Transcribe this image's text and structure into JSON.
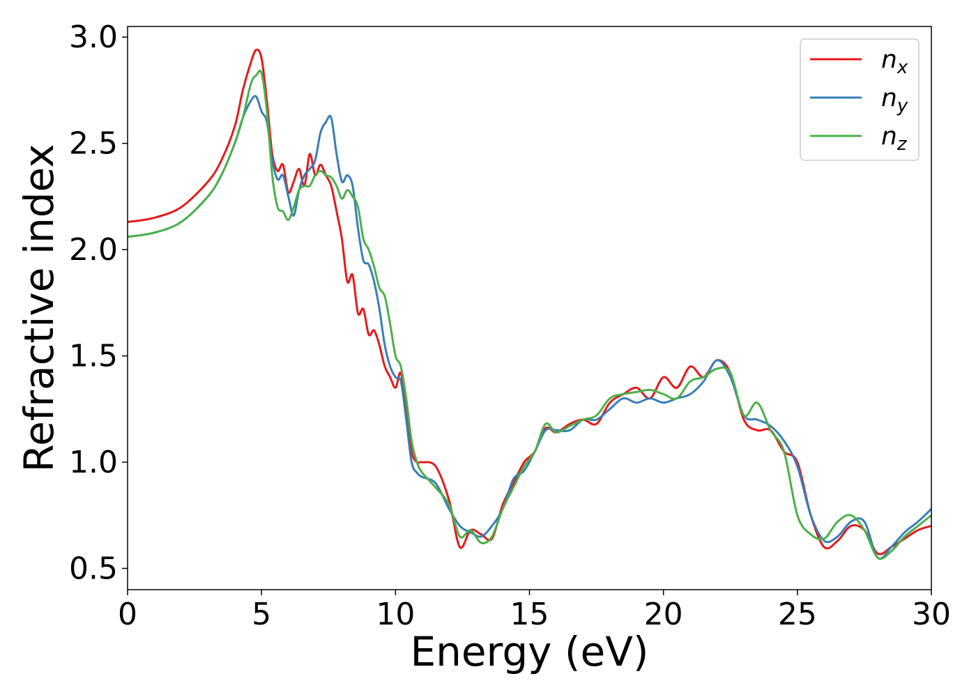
{
  "chart_data": {
    "type": "line",
    "xlabel": "Energy (eV)",
    "ylabel": "Refractive index",
    "xlim": [
      0,
      30
    ],
    "ylim": [
      0.4,
      3.05
    ],
    "xticks": [
      "0",
      "5",
      "10",
      "15",
      "20",
      "25",
      "30"
    ],
    "yticks": [
      "0.5",
      "1.0",
      "1.5",
      "2.0",
      "2.5",
      "3.0"
    ],
    "grid": false,
    "legend_position": "top-right",
    "series": [
      {
        "name": "n",
        "subscript": "x",
        "color": "#e41a1c",
        "x": [
          0,
          1,
          2,
          3,
          3.5,
          4,
          4.3,
          4.6,
          4.8,
          5.0,
          5.2,
          5.4,
          5.6,
          5.8,
          6.0,
          6.2,
          6.4,
          6.6,
          6.8,
          7.0,
          7.2,
          7.4,
          7.6,
          7.8,
          8.0,
          8.2,
          8.4,
          8.6,
          8.8,
          9.0,
          9.2,
          9.4,
          9.6,
          9.8,
          10.0,
          10.2,
          10.4,
          10.6,
          10.8,
          11.0,
          11.5,
          12.0,
          12.4,
          12.8,
          13.2,
          13.6,
          14.0,
          14.4,
          14.8,
          15.2,
          15.6,
          16.0,
          16.5,
          17.0,
          17.5,
          18.0,
          18.5,
          19.0,
          19.5,
          20.0,
          20.5,
          21.0,
          21.5,
          22.0,
          22.5,
          23.0,
          23.5,
          24.0,
          24.5,
          25.0,
          25.5,
          26.0,
          26.5,
          27.0,
          27.5,
          28.0,
          28.5,
          29.0,
          29.5,
          30.0
        ],
        "y": [
          2.13,
          2.15,
          2.2,
          2.32,
          2.42,
          2.58,
          2.75,
          2.88,
          2.94,
          2.9,
          2.7,
          2.45,
          2.37,
          2.4,
          2.27,
          2.32,
          2.38,
          2.3,
          2.45,
          2.35,
          2.4,
          2.35,
          2.3,
          2.18,
          2.05,
          1.85,
          1.88,
          1.7,
          1.72,
          1.6,
          1.62,
          1.55,
          1.45,
          1.4,
          1.35,
          1.42,
          1.25,
          1.05,
          1.0,
          1.0,
          0.98,
          0.82,
          0.6,
          0.68,
          0.66,
          0.64,
          0.8,
          0.9,
          1.0,
          1.05,
          1.16,
          1.14,
          1.18,
          1.2,
          1.18,
          1.28,
          1.32,
          1.35,
          1.3,
          1.4,
          1.35,
          1.45,
          1.4,
          1.48,
          1.42,
          1.2,
          1.15,
          1.15,
          1.05,
          1.0,
          0.75,
          0.6,
          0.63,
          0.7,
          0.68,
          0.57,
          0.6,
          0.64,
          0.68,
          0.7
        ]
      },
      {
        "name": "n",
        "subscript": "y",
        "color": "#377eb8",
        "x": [
          0,
          1,
          2,
          3,
          3.5,
          4,
          4.3,
          4.6,
          4.8,
          5.0,
          5.2,
          5.4,
          5.6,
          5.8,
          6.0,
          6.2,
          6.4,
          6.6,
          6.8,
          7.0,
          7.2,
          7.4,
          7.6,
          7.8,
          8.0,
          8.2,
          8.4,
          8.6,
          8.8,
          9.0,
          9.2,
          9.4,
          9.6,
          9.8,
          10.0,
          10.2,
          10.4,
          10.6,
          10.8,
          11.0,
          11.5,
          12.0,
          12.4,
          12.8,
          13.2,
          13.6,
          14.0,
          14.4,
          14.8,
          15.2,
          15.6,
          16.0,
          16.5,
          17.0,
          17.5,
          18.0,
          18.5,
          19.0,
          19.5,
          20.0,
          20.5,
          21.0,
          21.5,
          22.0,
          22.5,
          23.0,
          23.5,
          24.0,
          24.5,
          25.0,
          25.5,
          26.0,
          26.5,
          27.0,
          27.5,
          28.0,
          28.5,
          29.0,
          29.5,
          30.0
        ],
        "y": [
          2.06,
          2.08,
          2.13,
          2.25,
          2.35,
          2.5,
          2.62,
          2.7,
          2.72,
          2.65,
          2.6,
          2.42,
          2.33,
          2.35,
          2.25,
          2.16,
          2.28,
          2.35,
          2.38,
          2.42,
          2.55,
          2.6,
          2.62,
          2.45,
          2.32,
          2.35,
          2.3,
          2.1,
          1.95,
          1.93,
          1.85,
          1.72,
          1.55,
          1.45,
          1.4,
          1.38,
          1.2,
          1.0,
          0.95,
          0.93,
          0.9,
          0.78,
          0.7,
          0.67,
          0.65,
          0.7,
          0.78,
          0.92,
          0.96,
          1.05,
          1.15,
          1.15,
          1.15,
          1.2,
          1.2,
          1.25,
          1.3,
          1.28,
          1.3,
          1.28,
          1.3,
          1.32,
          1.38,
          1.48,
          1.4,
          1.22,
          1.2,
          1.17,
          1.1,
          0.98,
          0.75,
          0.63,
          0.65,
          0.72,
          0.72,
          0.55,
          0.6,
          0.67,
          0.72,
          0.78
        ]
      },
      {
        "name": "n",
        "subscript": "z",
        "color": "#4daf4a",
        "x": [
          0,
          1,
          2,
          3,
          3.5,
          4,
          4.3,
          4.6,
          4.8,
          5.0,
          5.2,
          5.4,
          5.6,
          5.8,
          6.0,
          6.2,
          6.4,
          6.6,
          6.8,
          7.0,
          7.2,
          7.4,
          7.6,
          7.8,
          8.0,
          8.2,
          8.4,
          8.6,
          8.8,
          9.0,
          9.2,
          9.4,
          9.6,
          9.8,
          10.0,
          10.2,
          10.4,
          10.6,
          10.8,
          11.0,
          11.5,
          12.0,
          12.4,
          12.8,
          13.2,
          13.6,
          14.0,
          14.4,
          14.8,
          15.2,
          15.6,
          16.0,
          16.5,
          17.0,
          17.5,
          18.0,
          18.5,
          19.0,
          19.5,
          20.0,
          20.5,
          21.0,
          21.5,
          22.0,
          22.5,
          23.0,
          23.5,
          24.0,
          24.5,
          25.0,
          25.5,
          26.0,
          26.5,
          27.0,
          27.5,
          28.0,
          28.5,
          29.0,
          29.5,
          30.0
        ],
        "y": [
          2.06,
          2.08,
          2.13,
          2.25,
          2.35,
          2.5,
          2.62,
          2.78,
          2.82,
          2.83,
          2.65,
          2.35,
          2.2,
          2.18,
          2.14,
          2.2,
          2.28,
          2.3,
          2.3,
          2.35,
          2.37,
          2.35,
          2.34,
          2.3,
          2.24,
          2.28,
          2.25,
          2.2,
          2.05,
          2.0,
          1.92,
          1.82,
          1.78,
          1.65,
          1.5,
          1.45,
          1.3,
          1.1,
          1.0,
          0.95,
          0.88,
          0.8,
          0.65,
          0.68,
          0.62,
          0.65,
          0.78,
          0.88,
          0.98,
          1.05,
          1.18,
          1.14,
          1.17,
          1.2,
          1.22,
          1.3,
          1.32,
          1.33,
          1.34,
          1.32,
          1.3,
          1.38,
          1.4,
          1.44,
          1.42,
          1.22,
          1.28,
          1.15,
          1.05,
          0.75,
          0.66,
          0.64,
          0.72,
          0.75,
          0.68,
          0.55,
          0.58,
          0.65,
          0.7,
          0.75
        ]
      }
    ]
  }
}
